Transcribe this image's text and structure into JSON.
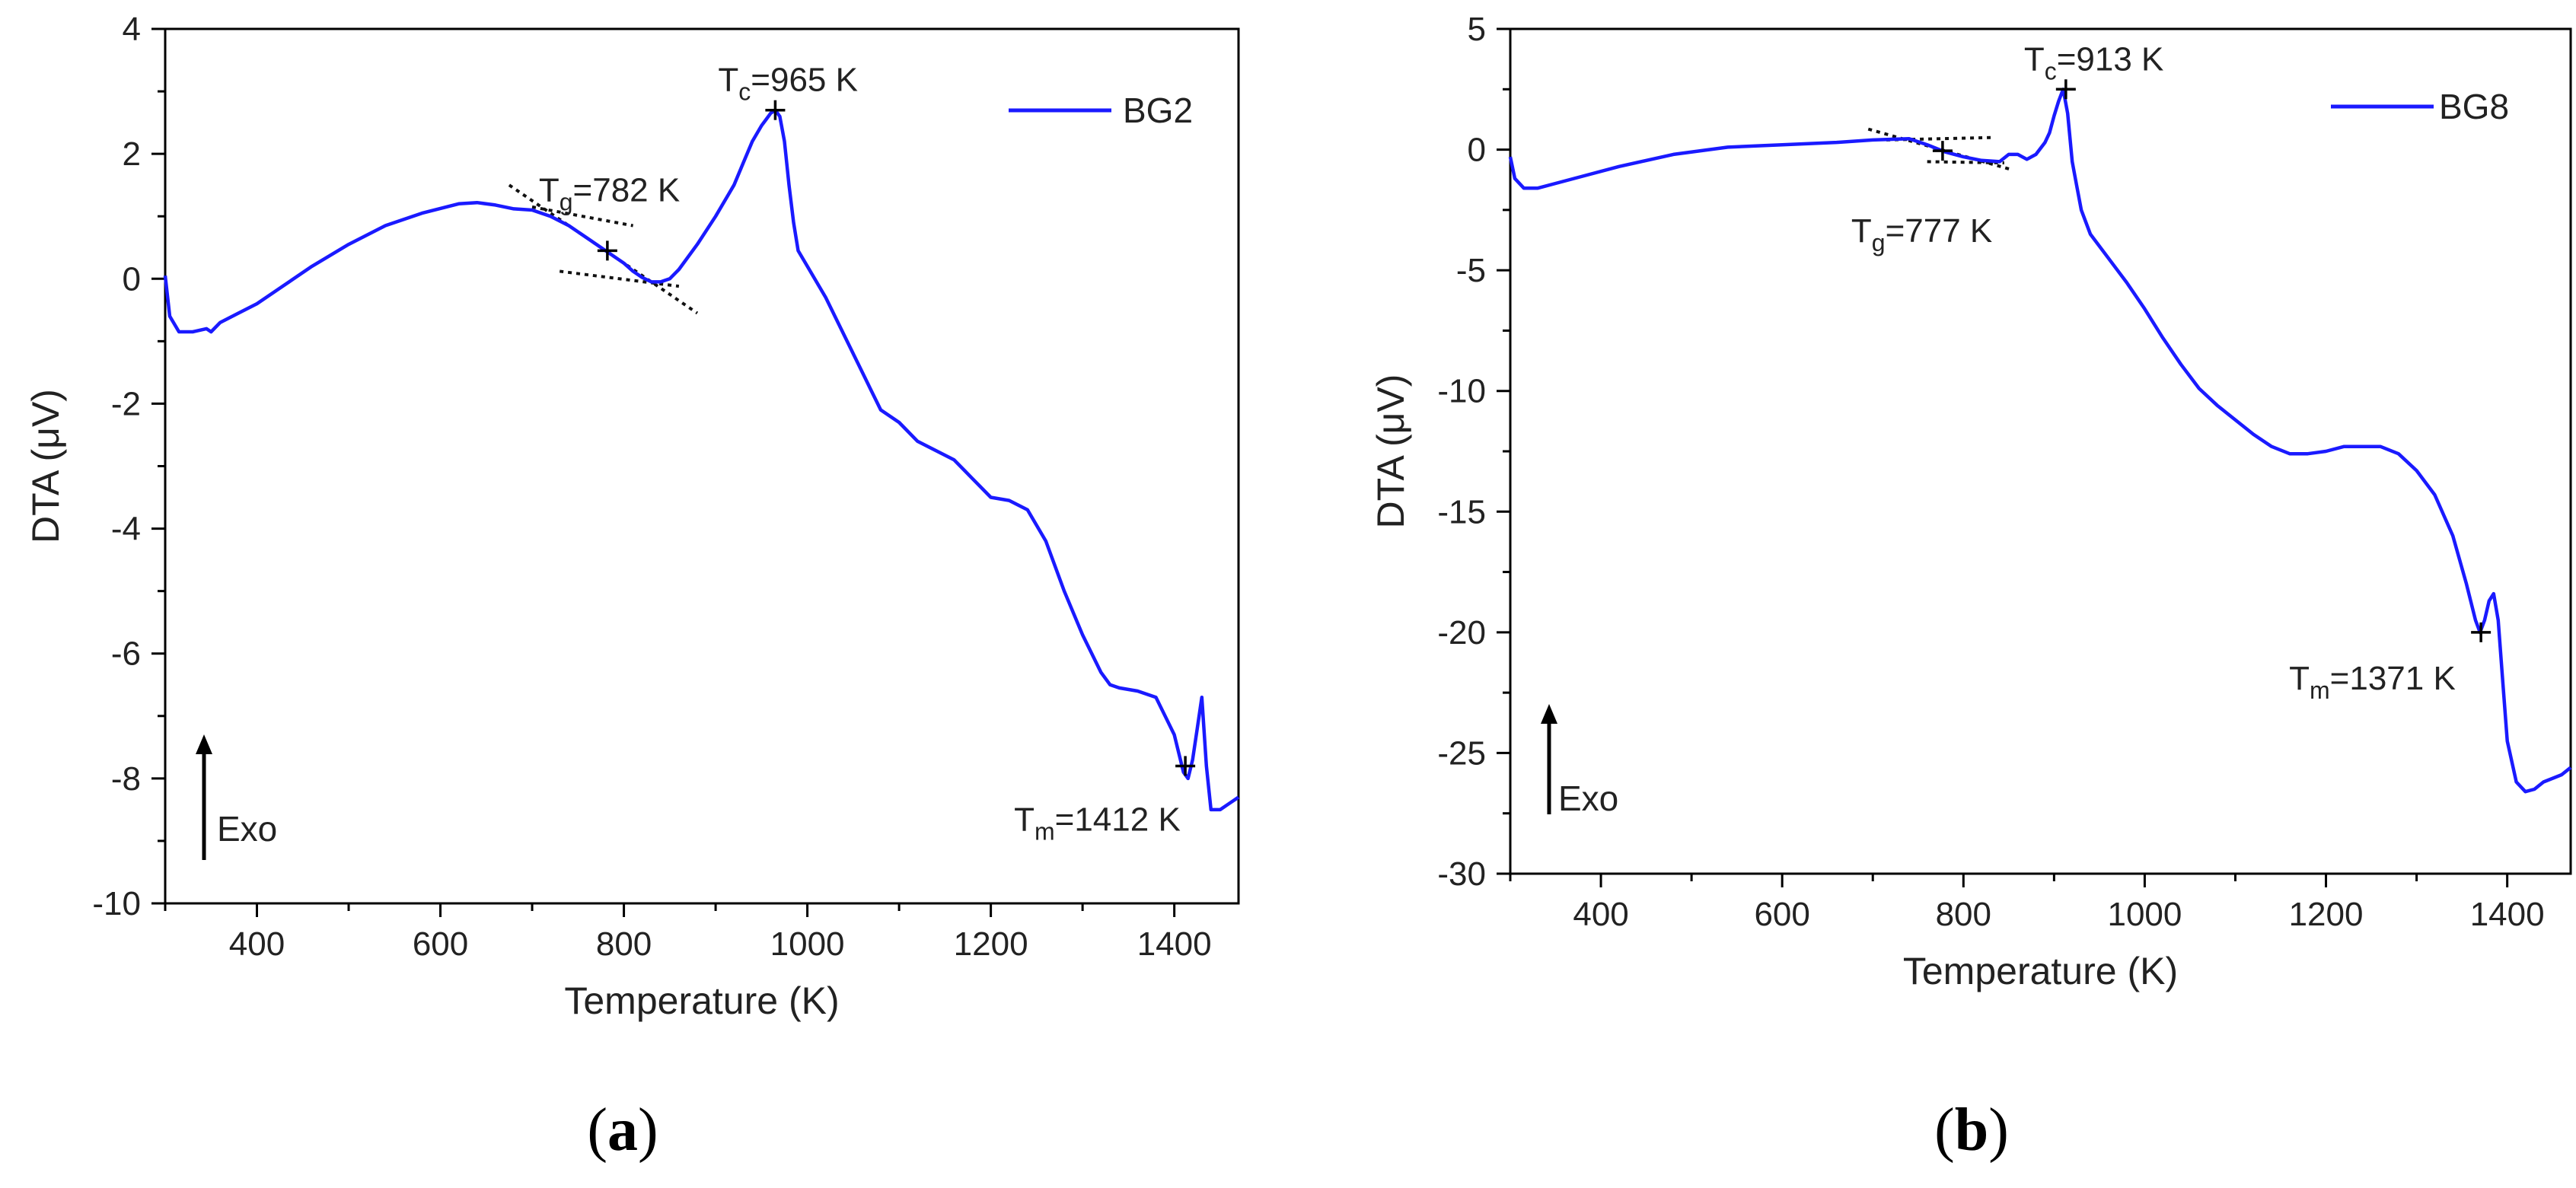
{
  "panels": [
    {
      "caption": "a",
      "chart_data": {
        "type": "line",
        "xlabel": "Temperature (K)",
        "ylabel": "DTA (μV)",
        "xlim": [
          300,
          1470
        ],
        "ylim": [
          -10,
          4
        ],
        "xticks": [
          400,
          600,
          800,
          1000,
          1200,
          1400
        ],
        "yticks": [
          4,
          2,
          0,
          -2,
          -4,
          -6,
          -8,
          -10
        ],
        "legend_position": "top-right",
        "series": [
          {
            "name": "BG2",
            "color": "#1a1aff",
            "x": [
              300,
              305,
              315,
              330,
              345,
              350,
              360,
              380,
              400,
              430,
              460,
              500,
              540,
              580,
              620,
              640,
              660,
              680,
              700,
              720,
              740,
              760,
              780,
              800,
              810,
              820,
              830,
              840,
              850,
              860,
              880,
              900,
              920,
              930,
              940,
              950,
              955,
              960,
              965,
              970,
              975,
              980,
              985,
              990,
              1000,
              1020,
              1040,
              1060,
              1070,
              1080,
              1100,
              1120,
              1140,
              1160,
              1180,
              1200,
              1220,
              1240,
              1260,
              1280,
              1300,
              1320,
              1330,
              1340,
              1360,
              1380,
              1400,
              1410,
              1415,
              1420,
              1425,
              1430,
              1435,
              1440,
              1450,
              1460,
              1470
            ],
            "values": [
              0.05,
              -0.6,
              -0.85,
              -0.85,
              -0.8,
              -0.85,
              -0.7,
              -0.55,
              -0.4,
              -0.1,
              0.2,
              0.55,
              0.85,
              1.05,
              1.2,
              1.22,
              1.18,
              1.12,
              1.1,
              1.0,
              0.85,
              0.65,
              0.45,
              0.25,
              0.12,
              0.02,
              -0.05,
              -0.05,
              0.0,
              0.15,
              0.55,
              1.0,
              1.5,
              1.85,
              2.2,
              2.45,
              2.55,
              2.65,
              2.7,
              2.6,
              2.2,
              1.5,
              0.9,
              0.45,
              0.2,
              -0.3,
              -0.9,
              -1.5,
              -1.8,
              -2.1,
              -2.3,
              -2.6,
              -2.75,
              -2.9,
              -3.2,
              -3.5,
              -3.55,
              -3.7,
              -4.2,
              -5.0,
              -5.7,
              -6.3,
              -6.5,
              -6.55,
              -6.6,
              -6.7,
              -7.3,
              -7.9,
              -8.0,
              -7.7,
              -7.2,
              -6.7,
              -7.8,
              -8.5,
              -8.5,
              -8.4,
              -8.3
            ]
          }
        ],
        "annotations": [
          {
            "main": "T",
            "sub": "c",
            "rest": "=965 K",
            "x": 965,
            "y": 2.7
          },
          {
            "main": "T",
            "sub": "g",
            "rest": "=782 K",
            "x": 782,
            "y": 0.45
          },
          {
            "main": "T",
            "sub": "m",
            "rest": "=1412 K",
            "x": 1412,
            "y": -7.8
          }
        ],
        "tangent_lines": [
          {
            "from": [
              675,
              1.5
            ],
            "to": [
              880,
              -0.55
            ]
          },
          {
            "from": [
              700,
              1.15
            ],
            "to": [
              810,
              0.85
            ]
          },
          {
            "from": [
              730,
              0.12
            ],
            "to": [
              860,
              -0.12
            ]
          }
        ],
        "exo_label": "Exo"
      }
    },
    {
      "caption": "b",
      "chart_data": {
        "type": "line",
        "xlabel": "Temperature (K)",
        "ylabel": "DTA (μV)",
        "xlim": [
          300,
          1470
        ],
        "ylim": [
          -30,
          5
        ],
        "xticks": [
          400,
          600,
          800,
          1000,
          1200,
          1400
        ],
        "yticks": [
          5,
          0,
          -5,
          -10,
          -15,
          -20,
          -25,
          -30
        ],
        "legend_position": "top-right",
        "series": [
          {
            "name": "BG8",
            "color": "#1a1aff",
            "x": [
              300,
              305,
              315,
              330,
              350,
              380,
              420,
              480,
              540,
              600,
              660,
              700,
              740,
              760,
              780,
              800,
              820,
              840,
              850,
              860,
              870,
              880,
              890,
              895,
              900,
              905,
              910,
              915,
              920,
              925,
              930,
              940,
              960,
              980,
              1000,
              1020,
              1040,
              1060,
              1080,
              1100,
              1120,
              1140,
              1160,
              1180,
              1200,
              1220,
              1240,
              1260,
              1280,
              1300,
              1320,
              1340,
              1355,
              1365,
              1370,
              1375,
              1380,
              1385,
              1390,
              1395,
              1400,
              1410,
              1420,
              1430,
              1440,
              1460,
              1470
            ],
            "values": [
              -0.3,
              -1.2,
              -1.6,
              -1.6,
              -1.4,
              -1.1,
              -0.7,
              -0.2,
              0.1,
              0.2,
              0.3,
              0.4,
              0.45,
              0.2,
              -0.1,
              -0.3,
              -0.45,
              -0.5,
              -0.2,
              -0.2,
              -0.4,
              -0.2,
              0.3,
              0.7,
              1.4,
              2.0,
              2.5,
              1.5,
              -0.5,
              -1.5,
              -2.5,
              -3.5,
              -4.5,
              -5.5,
              -6.6,
              -7.8,
              -8.9,
              -9.9,
              -10.6,
              -11.2,
              -11.8,
              -12.3,
              -12.6,
              -12.6,
              -12.5,
              -12.3,
              -12.3,
              -12.3,
              -12.6,
              -13.3,
              -14.3,
              -16.0,
              -18.0,
              -19.5,
              -20.0,
              -19.5,
              -18.7,
              -18.4,
              -19.5,
              -22.0,
              -24.5,
              -26.2,
              -26.6,
              -26.5,
              -26.2,
              -25.9,
              -25.6
            ]
          }
        ],
        "annotations": [
          {
            "main": "T",
            "sub": "c",
            "rest": "=913 K",
            "x": 913,
            "y": 2.5
          },
          {
            "main": "T",
            "sub": "g",
            "rest": "=777 K",
            "x": 777,
            "y": -0.05
          },
          {
            "main": "T",
            "sub": "m",
            "rest": "=1371 K",
            "x": 1371,
            "y": -20.0
          }
        ],
        "tangent_lines": [
          {
            "from": [
              695,
              0.85
            ],
            "to": [
              855,
              -0.85
            ]
          },
          {
            "from": [
              715,
              0.4
            ],
            "to": [
              830,
              0.5
            ]
          },
          {
            "from": [
              760,
              -0.5
            ],
            "to": [
              845,
              -0.55
            ]
          }
        ],
        "exo_label": "Exo"
      }
    }
  ]
}
